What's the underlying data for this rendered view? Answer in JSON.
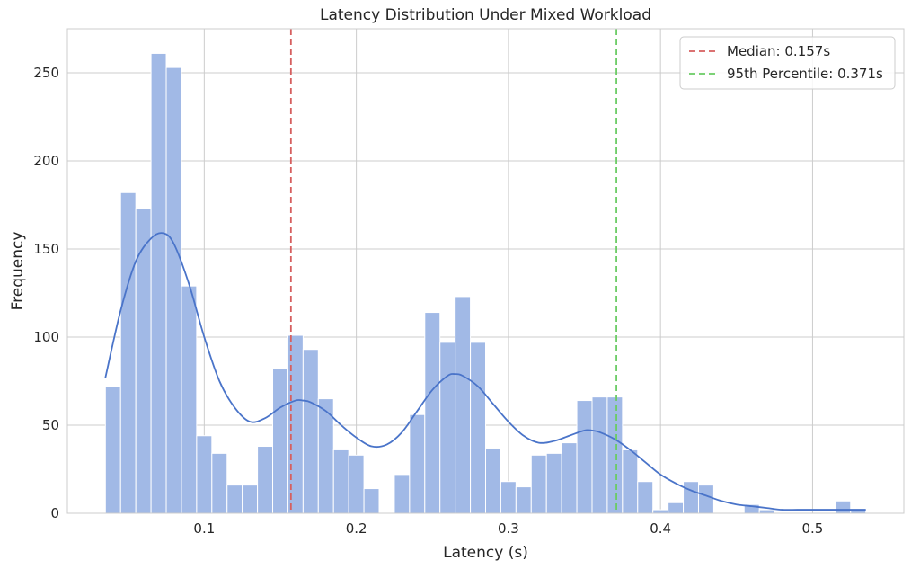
{
  "chart_data": {
    "type": "bar",
    "title": "Latency Distribution Under Mixed Workload",
    "xlabel": "Latency (s)",
    "ylabel": "Frequency",
    "xlim": [
      0.01,
      0.56
    ],
    "ylim": [
      0,
      275
    ],
    "xticks": [
      0.1,
      0.2,
      0.3,
      0.4,
      0.5
    ],
    "xtick_labels": [
      "0.1",
      "0.2",
      "0.3",
      "0.4",
      "0.5"
    ],
    "yticks": [
      0,
      50,
      100,
      150,
      200,
      250
    ],
    "ytick_labels": [
      "0",
      "50",
      "100",
      "150",
      "200",
      "250"
    ],
    "grid": true,
    "bin_start": 0.035,
    "bin_width": 0.01,
    "counts": [
      72,
      182,
      173,
      261,
      253,
      129,
      44,
      34,
      16,
      16,
      38,
      82,
      101,
      93,
      65,
      36,
      33,
      14,
      0,
      22,
      56,
      114,
      97,
      123,
      97,
      37,
      18,
      15,
      33,
      34,
      40,
      64,
      66,
      66,
      36,
      18,
      2,
      6,
      18,
      16,
      0,
      0,
      5,
      2,
      0,
      0,
      0,
      0,
      7,
      2
    ],
    "bar_color": "#a1b9e6",
    "kde": {
      "color": "#4a74c9",
      "x": [
        0.035,
        0.045,
        0.055,
        0.065,
        0.073,
        0.08,
        0.09,
        0.1,
        0.11,
        0.12,
        0.13,
        0.14,
        0.15,
        0.16,
        0.165,
        0.17,
        0.18,
        0.19,
        0.2,
        0.21,
        0.22,
        0.23,
        0.24,
        0.25,
        0.26,
        0.265,
        0.27,
        0.28,
        0.29,
        0.3,
        0.31,
        0.32,
        0.33,
        0.34,
        0.35,
        0.355,
        0.36,
        0.37,
        0.38,
        0.39,
        0.4,
        0.41,
        0.42,
        0.43,
        0.44,
        0.45,
        0.46,
        0.47,
        0.48,
        0.49,
        0.5,
        0.51,
        0.52,
        0.535
      ],
      "y": [
        77,
        115,
        143,
        156,
        159,
        153,
        130,
        100,
        75,
        60,
        52,
        54,
        60,
        64,
        64,
        63,
        58,
        50,
        43,
        38,
        39,
        46,
        58,
        70,
        78,
        79,
        78,
        72,
        62,
        52,
        44,
        40,
        41,
        44,
        47,
        47,
        46,
        42,
        36,
        29,
        22,
        17,
        13,
        10,
        7,
        5,
        4,
        3,
        2,
        2,
        2,
        2,
        2,
        2
      ]
    },
    "reference_lines": [
      {
        "name": "Median: 0.157s",
        "x": 0.157,
        "color": "#d65f5f",
        "dashed": true
      },
      {
        "name": "95th Percentile: 0.371s",
        "x": 0.371,
        "color": "#6acc64",
        "dashed": true
      }
    ],
    "legend_position": "top-right"
  }
}
